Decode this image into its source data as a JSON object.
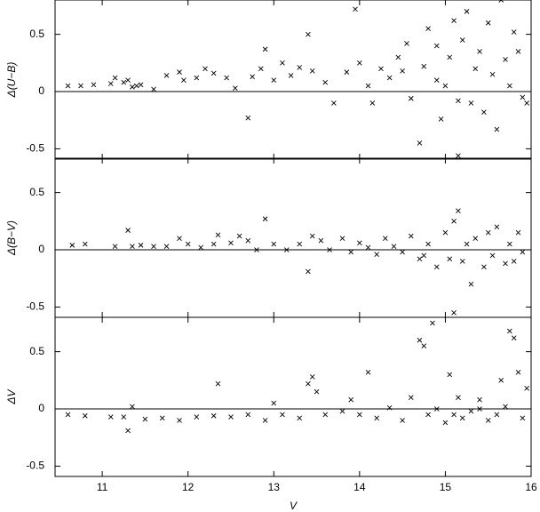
{
  "chart_data": [
    {
      "type": "scatter",
      "ylabel": "Δ(U−B)",
      "marker": "x",
      "color": "#000000",
      "hline": 0,
      "xlim": [
        10.45,
        16
      ],
      "ylim": [
        -0.59,
        0.8
      ],
      "xticks": [
        11,
        12,
        13,
        14,
        15,
        16
      ],
      "yticks": [
        -0.5,
        0,
        0.5
      ],
      "x": [
        10.6,
        10.75,
        10.9,
        11.1,
        11.15,
        11.25,
        11.3,
        11.35,
        11.4,
        11.45,
        11.6,
        11.75,
        11.9,
        11.95,
        12.1,
        12.2,
        12.3,
        12.45,
        12.55,
        12.7,
        12.75,
        12.85,
        12.9,
        13.0,
        13.1,
        13.2,
        13.3,
        13.4,
        13.45,
        13.6,
        13.7,
        13.85,
        13.95,
        14.0,
        14.1,
        14.15,
        14.25,
        14.35,
        14.45,
        14.55,
        14.6,
        14.7,
        14.75,
        14.8,
        14.9,
        14.95,
        15.0,
        15.05,
        15.1,
        15.15,
        15.2,
        15.25,
        15.3,
        15.35,
        15.4,
        15.45,
        15.5,
        15.55,
        15.6,
        15.65,
        15.7,
        15.75,
        15.8,
        15.85,
        15.9,
        15.95,
        14.9,
        14.5,
        15.15
      ],
      "values": [
        0.05,
        0.05,
        0.06,
        0.07,
        0.12,
        0.08,
        0.1,
        0.04,
        0.05,
        0.06,
        0.02,
        0.14,
        0.17,
        0.1,
        0.12,
        0.2,
        0.16,
        0.12,
        0.03,
        -0.23,
        0.13,
        0.2,
        0.37,
        0.1,
        0.25,
        0.14,
        0.21,
        0.5,
        0.18,
        0.08,
        -0.1,
        0.17,
        0.72,
        0.25,
        0.05,
        -0.1,
        0.2,
        0.12,
        0.3,
        0.42,
        -0.06,
        -0.45,
        0.22,
        0.55,
        0.1,
        -0.24,
        0.05,
        0.3,
        0.62,
        -0.08,
        0.45,
        0.7,
        -0.1,
        0.2,
        0.35,
        -0.18,
        0.6,
        0.15,
        -0.33,
        0.8,
        0.28,
        0.05,
        0.52,
        0.35,
        -0.05,
        -0.1,
        0.4,
        0.18,
        -0.56
      ]
    },
    {
      "type": "scatter",
      "ylabel": "Δ(B−V)",
      "marker": "x",
      "color": "#000000",
      "hline": 0,
      "xlim": [
        10.45,
        16
      ],
      "ylim": [
        -0.59,
        0.8
      ],
      "xticks": [
        11,
        12,
        13,
        14,
        15,
        16
      ],
      "yticks": [
        -0.5,
        0,
        0.5
      ],
      "x": [
        10.65,
        10.8,
        11.15,
        11.3,
        11.35,
        11.45,
        11.6,
        11.75,
        11.9,
        12.0,
        12.15,
        12.3,
        12.35,
        12.5,
        12.6,
        12.7,
        12.8,
        12.9,
        13.0,
        13.15,
        13.3,
        13.4,
        13.45,
        13.55,
        13.65,
        13.8,
        13.9,
        14.0,
        14.1,
        14.2,
        14.3,
        14.4,
        14.5,
        14.6,
        14.7,
        14.8,
        14.9,
        15.0,
        15.05,
        15.1,
        15.15,
        15.2,
        15.25,
        15.3,
        15.35,
        15.45,
        15.5,
        15.55,
        15.6,
        15.7,
        15.75,
        15.8,
        15.85,
        15.9,
        15.1,
        14.75
      ],
      "values": [
        0.04,
        0.05,
        0.03,
        0.17,
        0.03,
        0.04,
        0.03,
        0.03,
        0.1,
        0.05,
        0.02,
        0.05,
        0.13,
        0.06,
        0.12,
        0.08,
        0.0,
        0.27,
        0.05,
        0.0,
        0.05,
        -0.19,
        0.12,
        0.08,
        0.0,
        0.1,
        -0.02,
        0.06,
        0.02,
        -0.04,
        0.1,
        0.03,
        -0.02,
        0.12,
        -0.08,
        0.05,
        -0.15,
        0.15,
        -0.08,
        0.25,
        0.34,
        -0.1,
        0.05,
        -0.3,
        0.1,
        -0.15,
        0.15,
        -0.05,
        0.2,
        -0.12,
        0.05,
        -0.1,
        0.15,
        -0.02,
        -0.55,
        -0.05
      ]
    },
    {
      "type": "scatter",
      "ylabel": "ΔV",
      "xlabel": "V",
      "marker": "x",
      "color": "#000000",
      "hline": 0,
      "xlim": [
        10.45,
        16
      ],
      "ylim": [
        -0.59,
        0.8
      ],
      "xticks": [
        11,
        12,
        13,
        14,
        15,
        16
      ],
      "yticks": [
        -0.5,
        0,
        0.5
      ],
      "x": [
        10.6,
        10.8,
        11.1,
        11.25,
        11.3,
        11.35,
        11.5,
        11.7,
        11.9,
        12.1,
        12.3,
        12.35,
        12.5,
        12.7,
        12.9,
        13.0,
        13.1,
        13.3,
        13.4,
        13.45,
        13.5,
        13.6,
        13.8,
        13.9,
        14.0,
        14.1,
        14.2,
        14.35,
        14.5,
        14.6,
        14.7,
        14.75,
        14.8,
        14.9,
        15.0,
        15.05,
        15.1,
        15.15,
        15.2,
        15.3,
        15.4,
        15.5,
        15.6,
        15.65,
        15.7,
        15.75,
        15.8,
        15.85,
        15.9,
        15.95,
        14.85,
        15.4
      ],
      "values": [
        -0.05,
        -0.06,
        -0.07,
        -0.07,
        -0.19,
        0.02,
        -0.09,
        -0.08,
        -0.1,
        -0.07,
        -0.06,
        0.22,
        -0.07,
        -0.05,
        -0.1,
        0.05,
        -0.05,
        -0.08,
        0.22,
        0.28,
        0.15,
        -0.05,
        -0.02,
        0.08,
        -0.05,
        0.32,
        -0.08,
        0.01,
        -0.1,
        0.1,
        0.6,
        0.55,
        -0.05,
        0.0,
        -0.12,
        0.3,
        -0.05,
        0.1,
        -0.08,
        -0.02,
        0.08,
        -0.1,
        -0.05,
        0.25,
        0.02,
        0.68,
        0.62,
        0.32,
        -0.08,
        0.18,
        0.75,
        0.0
      ]
    }
  ]
}
